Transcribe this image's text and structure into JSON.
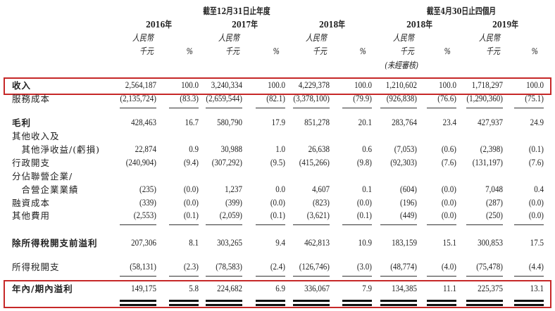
{
  "header": {
    "period_year": "截至12月31日止年度",
    "period_4m": "截至4月30日止四個月",
    "columns": [
      {
        "year": "2016年",
        "currency": "人民幣",
        "unit": "千元",
        "pct": "%"
      },
      {
        "year": "2017年",
        "currency": "人民幣",
        "unit": "千元",
        "pct": "%"
      },
      {
        "year": "2018年",
        "currency": "人民幣",
        "unit": "千元",
        "pct": "%"
      },
      {
        "year": "2018年",
        "currency": "人民幣",
        "unit": "千元",
        "pct": "%",
        "note": "(未經審核)"
      },
      {
        "year": "2019年",
        "currency": "人民幣",
        "unit": "千元",
        "pct": "%"
      }
    ]
  },
  "rows": [
    {
      "label": "收入",
      "values": [
        "2,564,187",
        "100.0",
        "3,240,334",
        "100.0",
        "4,229,378",
        "100.0",
        "1,210,602",
        "100.0",
        "1,718,297",
        "100.0"
      ]
    },
    {
      "label": "服務成本",
      "values": [
        "(2,135,724)",
        "(83.3)",
        "(2,659,544)",
        "(82.1)",
        "(3,378,100)",
        "(79.9)",
        "(926,838)",
        "(76.6)",
        "(1,290,360)",
        "(75.1)"
      ]
    },
    {
      "label": "毛利",
      "values": [
        "428,463",
        "16.7",
        "580,790",
        "17.9",
        "851,278",
        "20.1",
        "283,764",
        "23.4",
        "427,937",
        "24.9"
      ]
    },
    {
      "label": "其他收入及",
      "values": []
    },
    {
      "label": "　其他淨收益/(虧損)",
      "values": [
        "22,874",
        "0.9",
        "30,988",
        "1.0",
        "26,638",
        "0.6",
        "(7,053)",
        "(0.6)",
        "(2,398)",
        "(0.1)"
      ]
    },
    {
      "label": "行政開支",
      "values": [
        "(240,904)",
        "(9.4)",
        "(307,292)",
        "(9.5)",
        "(415,266)",
        "(9.8)",
        "(92,303)",
        "(7.6)",
        "(131,197)",
        "(7.6)"
      ]
    },
    {
      "label": "分佔聯營企業/",
      "values": []
    },
    {
      "label": "　合營企業業績",
      "values": [
        "(235)",
        "(0.0)",
        "1,237",
        "0.0",
        "4,607",
        "0.1",
        "(604)",
        "(0.0)",
        "7,048",
        "0.4"
      ]
    },
    {
      "label": "融資成本",
      "values": [
        "(339)",
        "(0.0)",
        "(399)",
        "(0.0)",
        "(823)",
        "(0.0)",
        "(196)",
        "(0.0)",
        "(287)",
        "(0.0)"
      ]
    },
    {
      "label": "其他費用",
      "values": [
        "(2,553)",
        "(0.1)",
        "(2,059)",
        "(0.1)",
        "(3,621)",
        "(0.1)",
        "(449)",
        "(0.0)",
        "(250)",
        "(0.0)"
      ]
    },
    {
      "label": "除所得稅開支前溢利",
      "values": [
        "207,306",
        "8.1",
        "303,265",
        "9.4",
        "462,813",
        "10.9",
        "183,159",
        "15.1",
        "300,853",
        "17.5"
      ]
    },
    {
      "label": "所得稅開支",
      "values": [
        "(58,131)",
        "(2.3)",
        "(78,583)",
        "(2.4)",
        "(126,746)",
        "(3.0)",
        "(48,774)",
        "(4.0)",
        "(75,478)",
        "(4.4)"
      ]
    },
    {
      "label": "年內/期內溢利",
      "values": [
        "149,175",
        "5.8",
        "224,682",
        "6.9",
        "336,067",
        "7.9",
        "134,385",
        "11.1",
        "225,375",
        "13.1"
      ]
    }
  ]
}
